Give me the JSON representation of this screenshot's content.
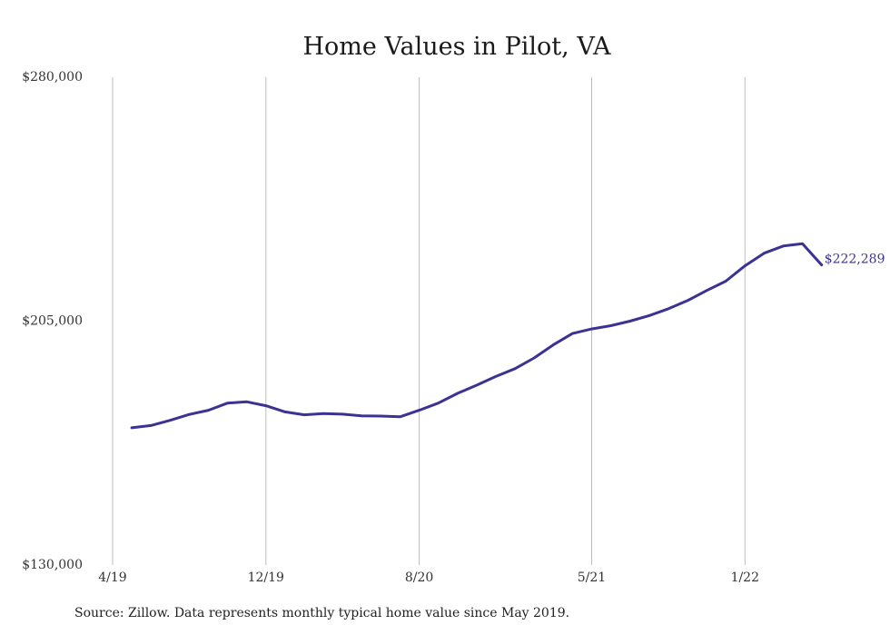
{
  "chart_data": {
    "type": "line",
    "title": "Home Values in Pilot, VA",
    "xlabel": "",
    "ylabel": "",
    "ylim": [
      130000,
      280000
    ],
    "y_ticks": [
      "$280,000",
      "$205,000",
      "$130,000"
    ],
    "y_tick_values": [
      280000,
      205000,
      130000
    ],
    "x_tick_labels": [
      "4/19",
      "12/19",
      "8/20",
      "5/21",
      "1/22"
    ],
    "x_tick_dates": [
      "2019-04",
      "2019-12",
      "2020-08",
      "2021-05",
      "2022-01"
    ],
    "grid": "vertical",
    "x": [
      "2019-05",
      "2019-06",
      "2019-07",
      "2019-08",
      "2019-09",
      "2019-10",
      "2019-11",
      "2019-12",
      "2020-01",
      "2020-02",
      "2020-03",
      "2020-04",
      "2020-05",
      "2020-06",
      "2020-07",
      "2020-08",
      "2020-09",
      "2020-10",
      "2020-11",
      "2020-12",
      "2021-01",
      "2021-02",
      "2021-03",
      "2021-04",
      "2021-05",
      "2021-06",
      "2021-07",
      "2021-08",
      "2021-09",
      "2021-10",
      "2021-11",
      "2021-12",
      "2022-01",
      "2022-02",
      "2022-03",
      "2022-04",
      "2022-05"
    ],
    "series": [
      {
        "color": "#3b3393",
        "values": [
          172200,
          172900,
          174500,
          176300,
          177600,
          179800,
          180200,
          179000,
          177100,
          176200,
          176600,
          176400,
          175900,
          175800,
          175600,
          177600,
          179800,
          182800,
          185300,
          188000,
          190400,
          193700,
          197700,
          201200,
          202600,
          203600,
          205000,
          206700,
          208800,
          211300,
          214400,
          217300,
          222000,
          225900,
          228100,
          228800,
          222289
        ]
      }
    ],
    "end_label": "$222,289",
    "source": "Source: Zillow. Data represents monthly typical home value since May 2019."
  }
}
